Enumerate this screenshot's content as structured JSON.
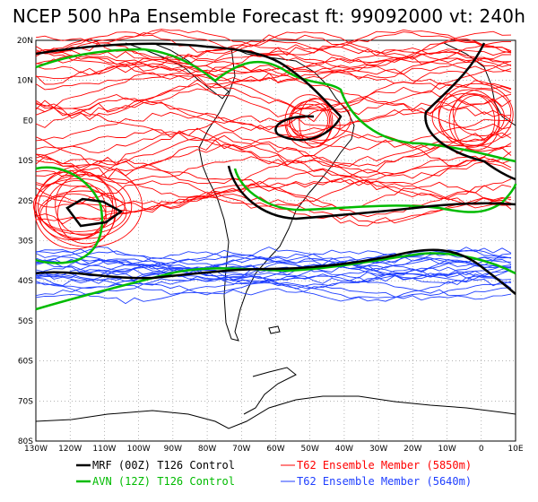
{
  "title": "NCEP 500 hPa Ensemble Forecast  ft: 99092000 vt: 240h",
  "lat_labels": [
    "20N",
    "10N",
    "E0",
    "10S",
    "20S",
    "30S",
    "40S",
    "50S",
    "60S",
    "70S",
    "80S"
  ],
  "lon_labels": [
    "130W",
    "120W",
    "110W",
    "100W",
    "90W",
    "80W",
    "70W",
    "60W",
    "50W",
    "40W",
    "30W",
    "20W",
    "10W",
    "0",
    "10E"
  ],
  "legend": [
    {
      "label": "MRF (00Z) T126 Control",
      "color": "#000000",
      "width": 2.5
    },
    {
      "label": "T62 Ensemble Member (5850m)",
      "color": "#ff0000",
      "width": 1
    },
    {
      "label": "AVN (12Z) T126 Control",
      "color": "#00bb00",
      "width": 2.5
    },
    {
      "label": "T62 Ensemble Member (5640m)",
      "color": "#1f3fff",
      "width": 1
    }
  ],
  "colors": {
    "mrf": "#000000",
    "avn": "#00bb00",
    "ens5850": "#ff0000",
    "ens5640": "#1f3fff",
    "grid": "#888888"
  }
}
